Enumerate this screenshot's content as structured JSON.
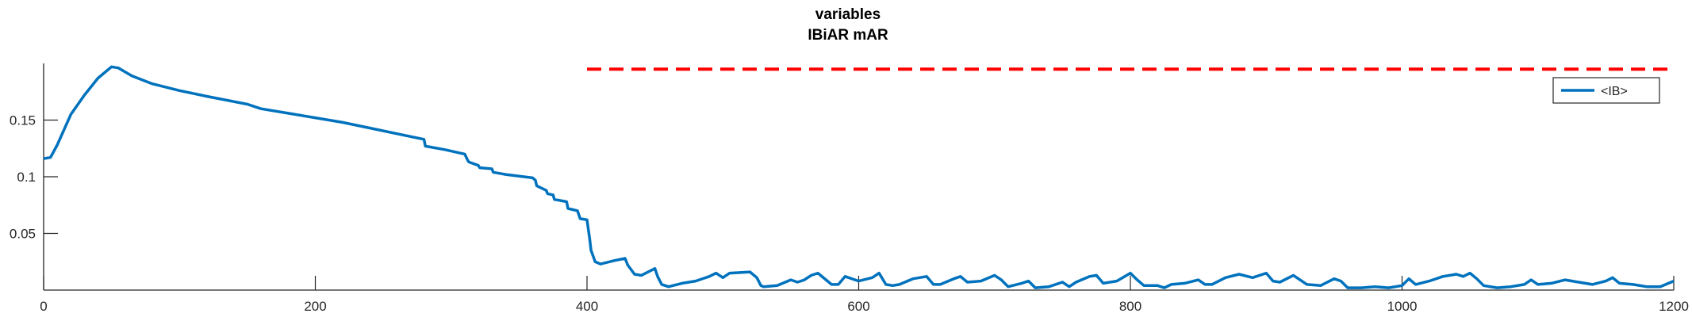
{
  "chart_data": {
    "type": "line",
    "title": [
      "variables",
      "IBiAR mAR"
    ],
    "xlim": [
      0,
      1200
    ],
    "ylim": [
      0,
      0.2
    ],
    "grid": false,
    "legend": {
      "placement": "top-right",
      "entries": [
        "<IB>"
      ]
    },
    "x_ticks": [
      0,
      200,
      400,
      600,
      800,
      1000,
      1200
    ],
    "x_tick_labels": [
      "0",
      "200",
      "400",
      "600",
      "800",
      "1000",
      "1200"
    ],
    "y_ticks": [
      0.05,
      0.1,
      0.15
    ],
    "y_tick_labels": [
      "0.05",
      "0.1",
      "0.15"
    ],
    "colors": {
      "series": "#0072BD",
      "reference": "#FF0000"
    },
    "series": [
      {
        "name": "<IB>",
        "style": "solid",
        "x": [
          0,
          5,
          10,
          20,
          30,
          40,
          50,
          55,
          65,
          80,
          100,
          120,
          150,
          160,
          180,
          200,
          220,
          240,
          260,
          280,
          281,
          295,
          310,
          312,
          313,
          320,
          321,
          330,
          331,
          340,
          360,
          362,
          363,
          370,
          371,
          375,
          376,
          385,
          386,
          393,
          395,
          400,
          402,
          403,
          406,
          410,
          420,
          428,
          430,
          435,
          440,
          445,
          450,
          452,
          455,
          460,
          470,
          480,
          490,
          495,
          500,
          505,
          520,
          525,
          528,
          530,
          540,
          550,
          555,
          560,
          565,
          570,
          580,
          585,
          590,
          600,
          610,
          615,
          620,
          625,
          630,
          640,
          650,
          655,
          660,
          670,
          675,
          680,
          690,
          700,
          705,
          710,
          720,
          725,
          730,
          740,
          750,
          755,
          760,
          770,
          775,
          780,
          790,
          800,
          805,
          810,
          820,
          825,
          830,
          840,
          850,
          855,
          860,
          870,
          880,
          890,
          900,
          905,
          910,
          920,
          930,
          940,
          950,
          955,
          960,
          970,
          980,
          990,
          1000,
          1005,
          1010,
          1020,
          1030,
          1040,
          1045,
          1050,
          1055,
          1060,
          1070,
          1080,
          1090,
          1095,
          1100,
          1110,
          1120,
          1130,
          1140,
          1150,
          1155,
          1160,
          1170,
          1180,
          1190,
          1200
        ],
        "y": [
          0.116,
          0.117,
          0.128,
          0.155,
          0.172,
          0.187,
          0.197,
          0.196,
          0.189,
          0.182,
          0.176,
          0.171,
          0.164,
          0.16,
          0.156,
          0.152,
          0.148,
          0.143,
          0.138,
          0.133,
          0.127,
          0.124,
          0.12,
          0.115,
          0.113,
          0.11,
          0.108,
          0.107,
          0.104,
          0.102,
          0.099,
          0.097,
          0.092,
          0.088,
          0.085,
          0.084,
          0.08,
          0.078,
          0.072,
          0.07,
          0.063,
          0.062,
          0.045,
          0.035,
          0.025,
          0.023,
          0.026,
          0.028,
          0.022,
          0.014,
          0.013,
          0.016,
          0.019,
          0.012,
          0.005,
          0.003,
          0.006,
          0.008,
          0.012,
          0.015,
          0.011,
          0.015,
          0.016,
          0.011,
          0.004,
          0.003,
          0.004,
          0.009,
          0.007,
          0.009,
          0.013,
          0.015,
          0.005,
          0.005,
          0.012,
          0.008,
          0.011,
          0.015,
          0.005,
          0.004,
          0.005,
          0.01,
          0.012,
          0.005,
          0.005,
          0.01,
          0.012,
          0.007,
          0.008,
          0.013,
          0.009,
          0.003,
          0.006,
          0.008,
          0.002,
          0.003,
          0.007,
          0.003,
          0.007,
          0.012,
          0.013,
          0.006,
          0.008,
          0.015,
          0.009,
          0.004,
          0.004,
          0.002,
          0.005,
          0.006,
          0.009,
          0.005,
          0.005,
          0.011,
          0.014,
          0.011,
          0.015,
          0.008,
          0.007,
          0.013,
          0.005,
          0.004,
          0.01,
          0.008,
          0.002,
          0.002,
          0.003,
          0.002,
          0.004,
          0.01,
          0.005,
          0.008,
          0.012,
          0.014,
          0.012,
          0.015,
          0.01,
          0.004,
          0.002,
          0.003,
          0.005,
          0.009,
          0.005,
          0.006,
          0.009,
          0.007,
          0.005,
          0.008,
          0.011,
          0.006,
          0.005,
          0.003,
          0.003,
          0.008
        ]
      },
      {
        "style": "dashed",
        "x": [
          400,
          1200
        ],
        "y": [
          0.195,
          0.195
        ]
      }
    ]
  }
}
